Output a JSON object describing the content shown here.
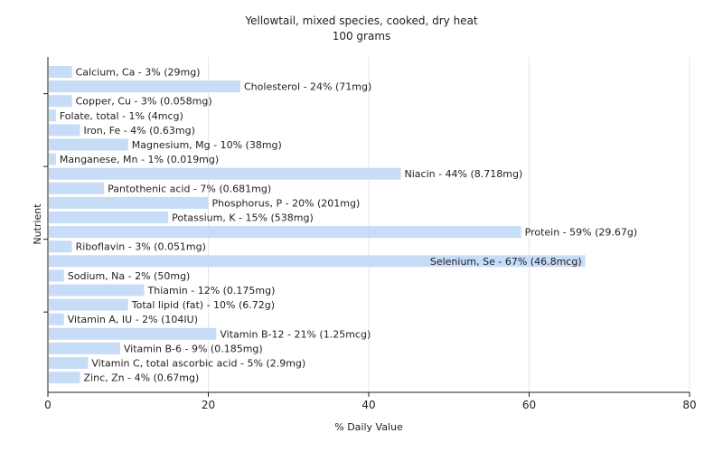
{
  "chart_data": {
    "type": "bar",
    "orientation": "horizontal",
    "title": "Yellowtail, mixed species, cooked, dry heat",
    "subtitle": "100 grams",
    "xlabel": "% Daily Value",
    "ylabel": "Nutrient",
    "xlim": [
      0,
      80
    ],
    "xticks": [
      0,
      20,
      40,
      60,
      80
    ],
    "grid": "vertical",
    "bar_color": "#c6dcf7",
    "categories": [
      "Calcium, Ca",
      "Cholesterol",
      "Copper, Cu",
      "Folate, total",
      "Iron, Fe",
      "Magnesium, Mg",
      "Manganese, Mn",
      "Niacin",
      "Pantothenic acid",
      "Phosphorus, P",
      "Potassium, K",
      "Protein",
      "Riboflavin",
      "Selenium, Se",
      "Sodium, Na",
      "Thiamin",
      "Total lipid (fat)",
      "Vitamin A, IU",
      "Vitamin B-12",
      "Vitamin B-6",
      "Vitamin C, total ascorbic acid",
      "Zinc, Zn"
    ],
    "values": [
      3,
      24,
      3,
      1,
      4,
      10,
      1,
      44,
      7,
      20,
      15,
      59,
      3,
      67,
      2,
      12,
      10,
      2,
      21,
      9,
      5,
      4
    ],
    "labels": [
      "Calcium, Ca - 3% (29mg)",
      "Cholesterol - 24% (71mg)",
      "Copper, Cu - 3% (0.058mg)",
      "Folate, total - 1% (4mcg)",
      "Iron, Fe - 4% (0.63mg)",
      "Magnesium, Mg - 10% (38mg)",
      "Manganese, Mn - 1% (0.019mg)",
      "Niacin - 44% (8.718mg)",
      "Pantothenic acid - 7% (0.681mg)",
      "Phosphorus, P - 20% (201mg)",
      "Potassium, K - 15% (538mg)",
      "Protein - 59% (29.67g)",
      "Riboflavin - 3% (0.051mg)",
      "Selenium, Se - 67% (46.8mcg)",
      "Sodium, Na - 2% (50mg)",
      "Thiamin - 12% (0.175mg)",
      "Total lipid (fat) - 10% (6.72g)",
      "Vitamin A, IU - 2% (104IU)",
      "Vitamin B-12 - 21% (1.25mcg)",
      "Vitamin B-6 - 9% (0.185mg)",
      "Vitamin C, total ascorbic acid - 5% (2.9mg)",
      "Zinc, Zn - 4% (0.67mg)"
    ],
    "inside_label_indices": [
      13
    ]
  }
}
